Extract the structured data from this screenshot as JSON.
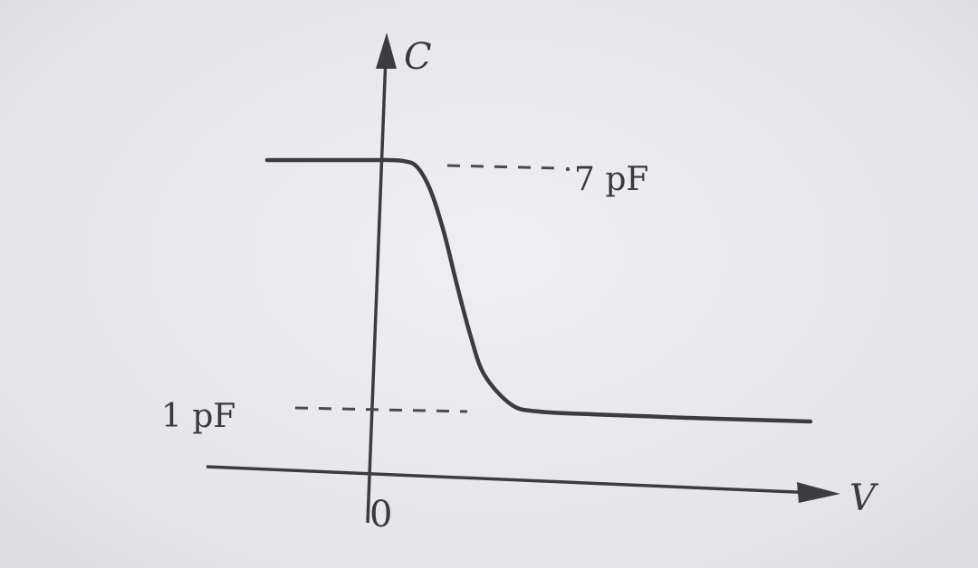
{
  "chart_data": {
    "type": "line",
    "title": "",
    "xlabel": "V",
    "ylabel": "C",
    "origin_label": "0",
    "y_high": 7,
    "y_low": 1,
    "y_high_label": "7 pF",
    "y_low_label": "1 pF",
    "unit": "pF",
    "series": [
      {
        "x": [
          -4,
          -1,
          0,
          0.5,
          1,
          1.5,
          2,
          2.5,
          3,
          3.5,
          4,
          5,
          6,
          8,
          10,
          12,
          14,
          16
        ],
        "y": [
          7,
          7,
          7,
          7,
          6.98,
          6.85,
          6.3,
          5.3,
          4.0,
          2.8,
          1.9,
          1.2,
          1.05,
          1.0,
          0.97,
          0.94,
          0.92,
          0.9
        ]
      }
    ],
    "grid": false,
    "colors": {
      "curve": "#3c3c40",
      "axes": "#3c3c40",
      "guide": "#4a4a4e"
    }
  }
}
